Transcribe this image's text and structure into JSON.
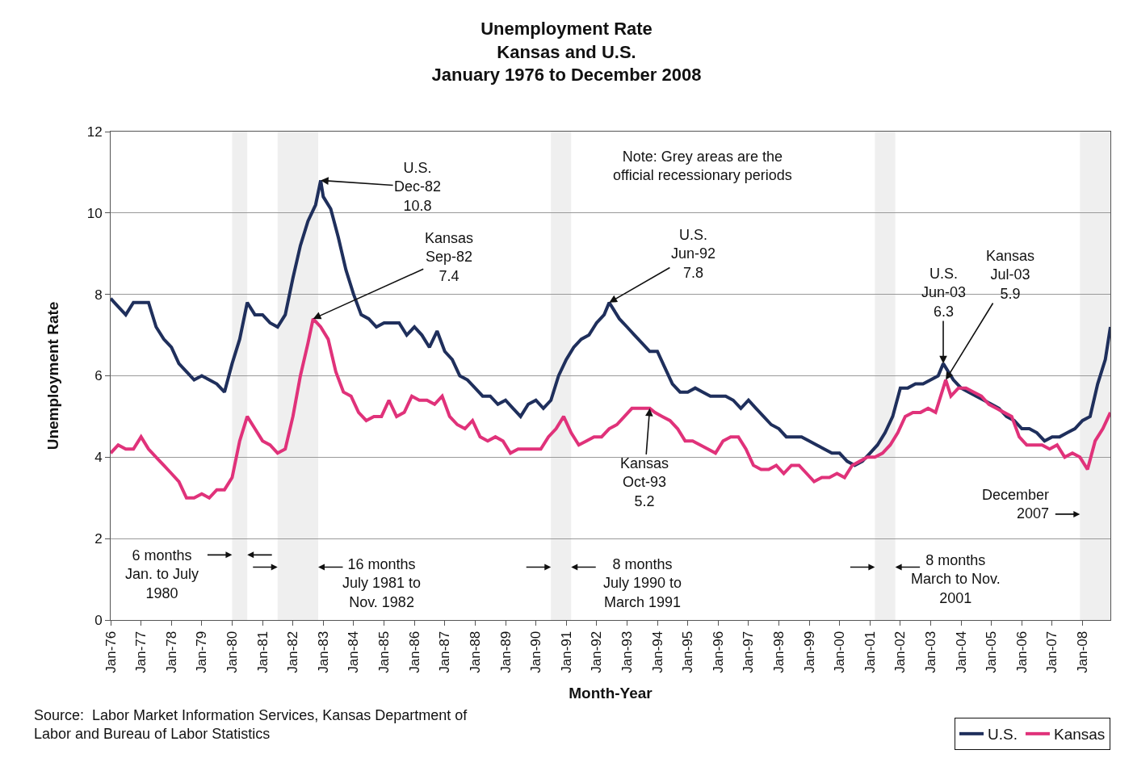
{
  "chart_data": {
    "type": "line",
    "title": "Unemployment Rate\nKansas and U.S.\nJanuary 1976 to December 2008",
    "xlabel": "Month-Year",
    "ylabel": "Unemployment Rate",
    "xlim": [
      "1976-01",
      "2008-12"
    ],
    "ylim": [
      0,
      12
    ],
    "yticks": [
      0,
      2,
      4,
      6,
      8,
      10,
      12
    ],
    "xticks": [
      {
        "value": "1976-01",
        "label": "Jan-76"
      },
      {
        "value": "1977-01",
        "label": "Jan-77"
      },
      {
        "value": "1978-01",
        "label": "Jan-78"
      },
      {
        "value": "1979-01",
        "label": "Jan-79"
      },
      {
        "value": "1980-01",
        "label": "Jan-80"
      },
      {
        "value": "1981-01",
        "label": "Jan-81"
      },
      {
        "value": "1982-01",
        "label": "Jan-82"
      },
      {
        "value": "1983-01",
        "label": "Jan-83"
      },
      {
        "value": "1984-01",
        "label": "Jan-84"
      },
      {
        "value": "1985-01",
        "label": "Jan-85"
      },
      {
        "value": "1986-01",
        "label": "Jan-86"
      },
      {
        "value": "1987-01",
        "label": "Jan-87"
      },
      {
        "value": "1988-01",
        "label": "Jan-88"
      },
      {
        "value": "1989-01",
        "label": "Jan-89"
      },
      {
        "value": "1990-01",
        "label": "Jan-90"
      },
      {
        "value": "1991-01",
        "label": "Jan-91"
      },
      {
        "value": "1992-01",
        "label": "Jan-92"
      },
      {
        "value": "1993-01",
        "label": "Jan-93"
      },
      {
        "value": "1994-01",
        "label": "Jan-94"
      },
      {
        "value": "1995-01",
        "label": "Jan-95"
      },
      {
        "value": "1996-01",
        "label": "Jan-96"
      },
      {
        "value": "1997-01",
        "label": "Jan-97"
      },
      {
        "value": "1998-01",
        "label": "Jan-98"
      },
      {
        "value": "1999-01",
        "label": "Jan-99"
      },
      {
        "value": "2000-01",
        "label": "Jan-00"
      },
      {
        "value": "2001-01",
        "label": "Jan-01"
      },
      {
        "value": "2002-01",
        "label": "Jan-02"
      },
      {
        "value": "2003-01",
        "label": "Jan-03"
      },
      {
        "value": "2004-01",
        "label": "Jan-04"
      },
      {
        "value": "2005-01",
        "label": "Jan-05"
      },
      {
        "value": "2006-01",
        "label": "Jan-06"
      },
      {
        "value": "2007-01",
        "label": "Jan-07"
      },
      {
        "value": "2008-01",
        "label": "Jan-08"
      }
    ],
    "grid": "y",
    "legend": "bottom right",
    "line_style": "solid",
    "marker": "none",
    "series": [
      {
        "name": "U.S.",
        "color": "#1f2f5c",
        "x": [
          "1976-01",
          "1976-04",
          "1976-07",
          "1976-10",
          "1977-01",
          "1977-04",
          "1977-07",
          "1977-10",
          "1978-01",
          "1978-04",
          "1978-07",
          "1978-10",
          "1979-01",
          "1979-04",
          "1979-07",
          "1979-10",
          "1980-01",
          "1980-04",
          "1980-07",
          "1980-10",
          "1981-01",
          "1981-04",
          "1981-07",
          "1981-10",
          "1982-01",
          "1982-04",
          "1982-07",
          "1982-10",
          "1982-12",
          "1983-01",
          "1983-04",
          "1983-07",
          "1983-10",
          "1984-01",
          "1984-04",
          "1984-07",
          "1984-10",
          "1985-01",
          "1985-04",
          "1985-07",
          "1985-10",
          "1986-01",
          "1986-04",
          "1986-07",
          "1986-10",
          "1987-01",
          "1987-04",
          "1987-07",
          "1987-10",
          "1988-01",
          "1988-04",
          "1988-07",
          "1988-10",
          "1989-01",
          "1989-04",
          "1989-07",
          "1989-10",
          "1990-01",
          "1990-04",
          "1990-07",
          "1990-10",
          "1991-01",
          "1991-04",
          "1991-07",
          "1991-10",
          "1992-01",
          "1992-04",
          "1992-06",
          "1992-10",
          "1993-01",
          "1993-04",
          "1993-07",
          "1993-10",
          "1994-01",
          "1994-04",
          "1994-07",
          "1994-10",
          "1995-01",
          "1995-04",
          "1995-07",
          "1995-10",
          "1996-01",
          "1996-04",
          "1996-07",
          "1996-10",
          "1997-01",
          "1997-04",
          "1997-07",
          "1997-10",
          "1998-01",
          "1998-04",
          "1998-07",
          "1998-10",
          "1999-01",
          "1999-04",
          "1999-07",
          "1999-10",
          "2000-01",
          "2000-04",
          "2000-07",
          "2000-10",
          "2001-01",
          "2001-04",
          "2001-07",
          "2001-10",
          "2002-01",
          "2002-04",
          "2002-07",
          "2002-10",
          "2003-01",
          "2003-04",
          "2003-06",
          "2003-10",
          "2004-01",
          "2004-04",
          "2004-07",
          "2004-10",
          "2005-01",
          "2005-04",
          "2005-07",
          "2005-10",
          "2006-01",
          "2006-04",
          "2006-07",
          "2006-10",
          "2007-01",
          "2007-04",
          "2007-07",
          "2007-10",
          "2008-01",
          "2008-04",
          "2008-07",
          "2008-10",
          "2008-12"
        ],
        "values": [
          7.9,
          7.7,
          7.5,
          7.8,
          7.8,
          7.8,
          7.2,
          6.9,
          6.7,
          6.3,
          6.1,
          5.9,
          6.0,
          5.9,
          5.8,
          5.6,
          6.3,
          6.9,
          7.8,
          7.5,
          7.5,
          7.3,
          7.2,
          7.5,
          8.4,
          9.2,
          9.8,
          10.2,
          10.8,
          10.4,
          10.1,
          9.4,
          8.6,
          8.0,
          7.5,
          7.4,
          7.2,
          7.3,
          7.3,
          7.3,
          7.0,
          7.2,
          7.0,
          6.7,
          7.1,
          6.6,
          6.4,
          6.0,
          5.9,
          5.7,
          5.5,
          5.5,
          5.3,
          5.4,
          5.2,
          5.0,
          5.3,
          5.4,
          5.2,
          5.4,
          6.0,
          6.4,
          6.7,
          6.9,
          7.0,
          7.3,
          7.5,
          7.8,
          7.4,
          7.2,
          7.0,
          6.8,
          6.6,
          6.6,
          6.2,
          5.8,
          5.6,
          5.6,
          5.7,
          5.6,
          5.5,
          5.5,
          5.5,
          5.4,
          5.2,
          5.4,
          5.2,
          5.0,
          4.8,
          4.7,
          4.5,
          4.5,
          4.5,
          4.4,
          4.3,
          4.2,
          4.1,
          4.1,
          3.9,
          3.8,
          3.9,
          4.1,
          4.3,
          4.6,
          5.0,
          5.7,
          5.7,
          5.8,
          5.8,
          5.9,
          6.0,
          6.3,
          5.9,
          5.7,
          5.6,
          5.5,
          5.4,
          5.3,
          5.2,
          5.0,
          4.9,
          4.7,
          4.7,
          4.6,
          4.4,
          4.5,
          4.5,
          4.6,
          4.7,
          4.9,
          5.0,
          5.8,
          6.4,
          7.2
        ]
      },
      {
        "name": "Kansas",
        "color": "#e0327a",
        "x": [
          "1976-01",
          "1976-04",
          "1976-07",
          "1976-10",
          "1977-01",
          "1977-04",
          "1977-07",
          "1977-10",
          "1978-01",
          "1978-04",
          "1978-07",
          "1978-10",
          "1979-01",
          "1979-04",
          "1979-07",
          "1979-10",
          "1980-01",
          "1980-04",
          "1980-07",
          "1980-10",
          "1981-01",
          "1981-04",
          "1981-07",
          "1981-10",
          "1982-01",
          "1982-04",
          "1982-07",
          "1982-09",
          "1982-12",
          "1983-03",
          "1983-06",
          "1983-09",
          "1983-12",
          "1984-03",
          "1984-06",
          "1984-09",
          "1984-12",
          "1985-03",
          "1985-06",
          "1985-09",
          "1985-12",
          "1986-03",
          "1986-06",
          "1986-09",
          "1986-12",
          "1987-03",
          "1987-06",
          "1987-09",
          "1987-12",
          "1988-03",
          "1988-06",
          "1988-09",
          "1988-12",
          "1989-03",
          "1989-06",
          "1989-09",
          "1989-12",
          "1990-03",
          "1990-06",
          "1990-09",
          "1990-12",
          "1991-03",
          "1991-06",
          "1991-09",
          "1991-12",
          "1992-03",
          "1992-06",
          "1992-09",
          "1992-12",
          "1993-03",
          "1993-06",
          "1993-10",
          "1993-12",
          "1994-03",
          "1994-06",
          "1994-09",
          "1994-12",
          "1995-03",
          "1995-06",
          "1995-09",
          "1995-12",
          "1996-03",
          "1996-06",
          "1996-09",
          "1996-12",
          "1997-03",
          "1997-06",
          "1997-09",
          "1997-12",
          "1998-03",
          "1998-06",
          "1998-09",
          "1998-12",
          "1999-03",
          "1999-06",
          "1999-09",
          "1999-12",
          "2000-03",
          "2000-06",
          "2000-09",
          "2000-12",
          "2001-03",
          "2001-06",
          "2001-09",
          "2001-12",
          "2002-03",
          "2002-06",
          "2002-09",
          "2002-12",
          "2003-03",
          "2003-07",
          "2003-09",
          "2003-12",
          "2004-03",
          "2004-06",
          "2004-09",
          "2004-12",
          "2005-03",
          "2005-06",
          "2005-09",
          "2005-12",
          "2006-03",
          "2006-06",
          "2006-09",
          "2006-12",
          "2007-03",
          "2007-06",
          "2007-09",
          "2007-12",
          "2008-03",
          "2008-06",
          "2008-09",
          "2008-12"
        ],
        "values": [
          4.1,
          4.3,
          4.2,
          4.2,
          4.5,
          4.2,
          4.0,
          3.8,
          3.6,
          3.4,
          3.0,
          3.0,
          3.1,
          3.0,
          3.2,
          3.2,
          3.5,
          4.4,
          5.0,
          4.7,
          4.4,
          4.3,
          4.1,
          4.2,
          5.0,
          6.0,
          6.8,
          7.4,
          7.2,
          6.9,
          6.1,
          5.6,
          5.5,
          5.1,
          4.9,
          5.0,
          5.0,
          5.4,
          5.0,
          5.1,
          5.5,
          5.4,
          5.4,
          5.3,
          5.5,
          5.0,
          4.8,
          4.7,
          4.9,
          4.5,
          4.4,
          4.5,
          4.4,
          4.1,
          4.2,
          4.2,
          4.2,
          4.2,
          4.5,
          4.7,
          5.0,
          4.6,
          4.3,
          4.4,
          4.5,
          4.5,
          4.7,
          4.8,
          5.0,
          5.2,
          5.2,
          5.2,
          5.1,
          5.0,
          4.9,
          4.7,
          4.4,
          4.4,
          4.3,
          4.2,
          4.1,
          4.4,
          4.5,
          4.5,
          4.2,
          3.8,
          3.7,
          3.7,
          3.8,
          3.6,
          3.8,
          3.8,
          3.6,
          3.4,
          3.5,
          3.5,
          3.6,
          3.5,
          3.8,
          3.9,
          4.0,
          4.0,
          4.1,
          4.3,
          4.6,
          5.0,
          5.1,
          5.1,
          5.2,
          5.1,
          5.9,
          5.5,
          5.7,
          5.7,
          5.6,
          5.5,
          5.3,
          5.2,
          5.1,
          5.0,
          4.5,
          4.3,
          4.3,
          4.3,
          4.2,
          4.3,
          4.0,
          4.1,
          4.0,
          3.7,
          4.4,
          4.7,
          5.1
        ]
      }
    ],
    "bands": [
      {
        "axis": "x",
        "from": "1980-01",
        "to": "1980-07",
        "label": "6 months\nJan. to July\n1980",
        "color": "#efefef"
      },
      {
        "axis": "x",
        "from": "1981-07",
        "to": "1982-11",
        "label": "16 months\nJuly 1981 to\nNov. 1982",
        "color": "#efefef"
      },
      {
        "axis": "x",
        "from": "1990-07",
        "to": "1991-03",
        "label": "8 months\nJuly 1990 to\nMarch 1991",
        "color": "#efefef"
      },
      {
        "axis": "x",
        "from": "2001-03",
        "to": "2001-11",
        "label": "8 months\nMarch to Nov.\n2001",
        "color": "#efefef"
      },
      {
        "axis": "x",
        "from": "2007-12",
        "to": "2008-12",
        "label": "December\n2007",
        "color": "#efefef"
      }
    ],
    "annotations": [
      "Note: Grey areas are the\nofficial recessionary periods",
      {
        "text": "U.S.\nDec-82\n10.8",
        "x": "1982-12",
        "y": 10.8
      },
      {
        "text": "Kansas\nSep-82\n7.4",
        "x": "1982-09",
        "y": 7.4
      },
      {
        "text": "U.S.\nJun-92\n7.8",
        "x": "1992-06",
        "y": 7.8
      },
      {
        "text": "Kansas\nOct-93\n5.2",
        "x": "1993-10",
        "y": 5.2
      },
      {
        "text": "U.S.\nJun-03\n6.3",
        "x": "2003-06",
        "y": 6.3
      },
      {
        "text": "Kansas\nJul-03\n5.9",
        "x": "2003-07",
        "y": 5.9
      },
      "Source:  Labor Market Information Services, Kansas Department of\nLabor and Bureau of Labor Statistics"
    ]
  }
}
